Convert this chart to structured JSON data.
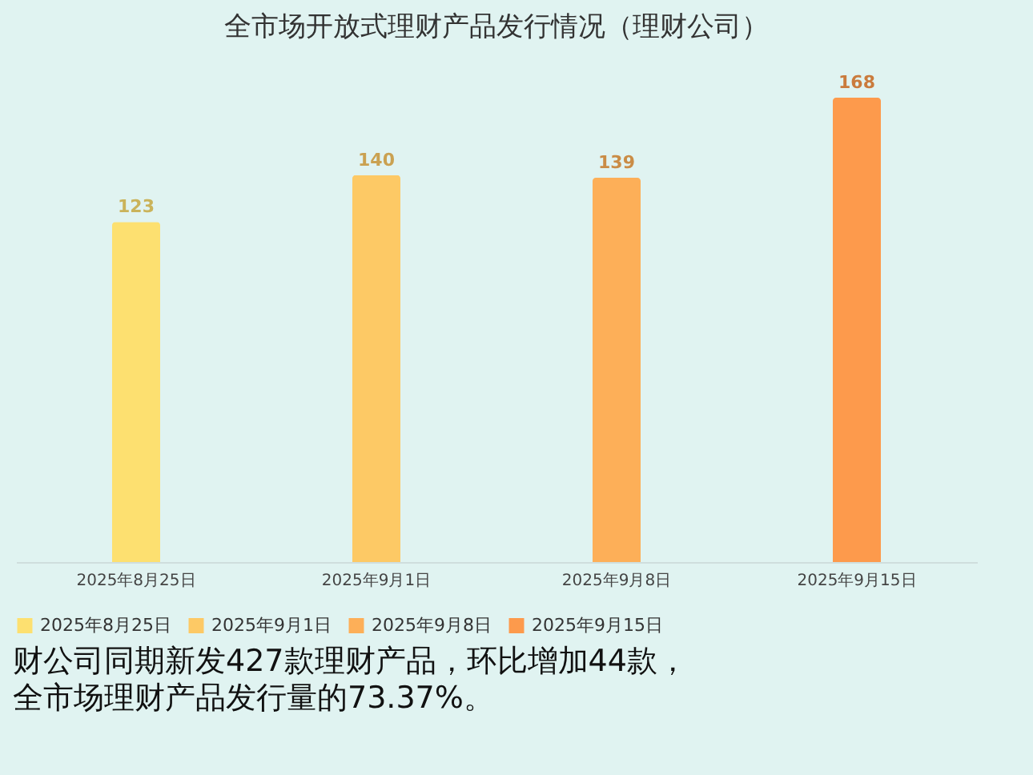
{
  "chart_data": {
    "type": "bar",
    "title": "全市场开放式理财产品发行情况（理财公司）",
    "categories": [
      "2025年8月25日",
      "2025年9月1日",
      "2025年9月8日",
      "2025年9月15日"
    ],
    "series": [
      {
        "name": "2025年8月25日",
        "color": "#fde070",
        "values": [
          123,
          null,
          null,
          null
        ]
      },
      {
        "name": "2025年9月1日",
        "color": "#fdc965",
        "values": [
          null,
          140,
          null,
          null
        ]
      },
      {
        "name": "2025年9月8日",
        "color": "#fdaf58",
        "values": [
          null,
          null,
          139,
          null
        ]
      },
      {
        "name": "2025年9月15日",
        "color": "#fd9a4c",
        "values": [
          null,
          null,
          null,
          168
        ]
      }
    ],
    "data_labels": true,
    "legend": "bottom",
    "grid": false,
    "annotations": [
      "财公司同期新发427款理财产品，环比增加44款，",
      "全市场理财产品发行量的73.37%。"
    ]
  }
}
